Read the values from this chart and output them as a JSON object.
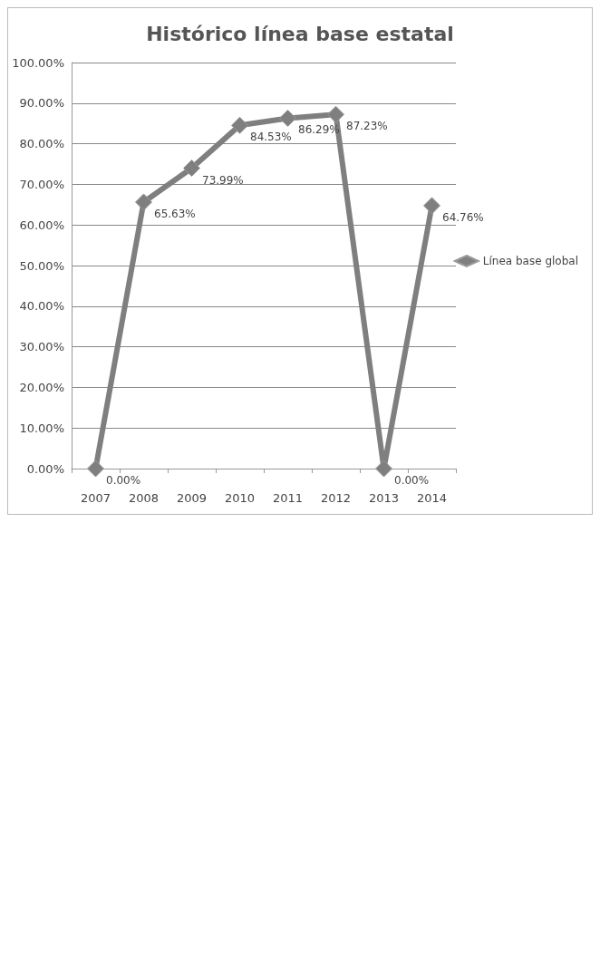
{
  "chart_data": {
    "type": "line",
    "title": "Histórico línea base estatal",
    "categories": [
      "2007",
      "2008",
      "2009",
      "2010",
      "2011",
      "2012",
      "2013",
      "2014"
    ],
    "series": [
      {
        "name": "Línea base global",
        "color": "#7f7f7f",
        "values": [
          0,
          65.63,
          73.99,
          84.53,
          86.29,
          87.23,
          0,
          64.76
        ],
        "value_labels": [
          "0.00%",
          "65.63%",
          "73.99%",
          "84.53%",
          "86.29%",
          "87.23%",
          "0.00%",
          "64.76%"
        ]
      }
    ],
    "ylim": [
      0,
      100
    ],
    "yticks": [
      {
        "value": 0,
        "label": "0.00%"
      },
      {
        "value": 10,
        "label": "10.00%"
      },
      {
        "value": 20,
        "label": "20.00%"
      },
      {
        "value": 30,
        "label": "30.00%"
      },
      {
        "value": 40,
        "label": "40.00%"
      },
      {
        "value": 50,
        "label": "50.00%"
      },
      {
        "value": 60,
        "label": "60.00%"
      },
      {
        "value": 70,
        "label": "70.00%"
      },
      {
        "value": 80,
        "label": "80.00%"
      },
      {
        "value": 90,
        "label": "90.00%"
      },
      {
        "value": 100,
        "label": "100.00%"
      }
    ],
    "grid": "y",
    "legend": "right",
    "marker": "diamond",
    "line_style": "solid"
  }
}
